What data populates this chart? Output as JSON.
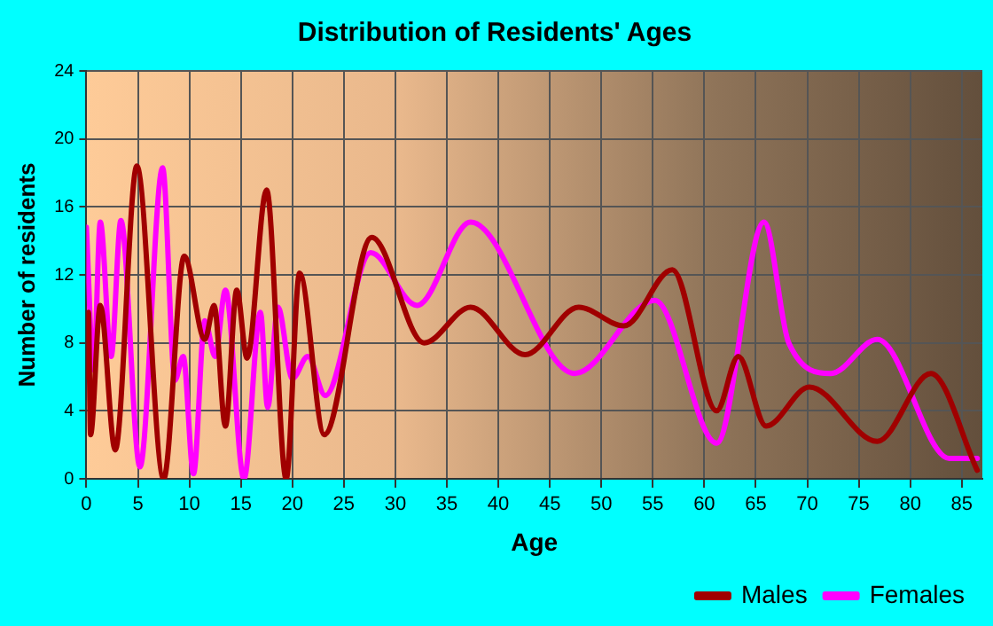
{
  "chart_data": {
    "type": "line",
    "title": "Distribution of Residents' Ages",
    "xlabel": "Age",
    "ylabel": "Number of residents",
    "xlim": [
      0,
      87
    ],
    "xticks": [
      0,
      5,
      10,
      15,
      20,
      25,
      30,
      35,
      40,
      45,
      50,
      55,
      60,
      65,
      70,
      75,
      80,
      85
    ],
    "ylim": [
      0,
      24
    ],
    "yticks": [
      0,
      4,
      8,
      12,
      16,
      20,
      24
    ],
    "grid": true,
    "legend": "bottom right",
    "marker": "none",
    "line_style": "solid",
    "series": [
      {
        "name": "Males",
        "color": "#a00000",
        "x": [
          0,
          0.2,
          0.4,
          1.35,
          2.8,
          4.9,
          7.5,
          9.5,
          11.5,
          12.4,
          13.5,
          14.6,
          15.6,
          17.5,
          19.4,
          20.7,
          23.1,
          27.7,
          32.8,
          37.3,
          42.6,
          47.8,
          52.2,
          56.9,
          61.2,
          63.3,
          66,
          70.2,
          76.8,
          82,
          86.5
        ],
        "values": [
          6,
          9.8,
          2.6,
          10.2,
          1.7,
          18.4,
          0,
          13.1,
          8.2,
          10.2,
          3.1,
          11.1,
          7.1,
          17,
          0,
          12.1,
          2.6,
          14.2,
          8,
          10.1,
          7.3,
          10.1,
          9,
          12.3,
          4,
          7.2,
          3.1,
          5.4,
          2.2,
          6.2,
          0.5
        ]
      },
      {
        "name": "Females",
        "color": "#ff00ff",
        "x": [
          0,
          0.7,
          1.35,
          2.4,
          3.35,
          5.2,
          7.4,
          8.6,
          9.4,
          10.4,
          11.5,
          12.5,
          13.5,
          15.3,
          16.9,
          17.6,
          18.6,
          20,
          21.5,
          23.2,
          27.6,
          32.1,
          37.3,
          47.4,
          55.2,
          61.2,
          65.8,
          68.2,
          72.3,
          76.8,
          83.8,
          86.5
        ],
        "values": [
          14.8,
          6.4,
          15.1,
          7.2,
          15.2,
          0.7,
          18.3,
          5.8,
          7.2,
          0.3,
          9.3,
          7.2,
          11.1,
          0,
          9.8,
          4.2,
          10.1,
          5.9,
          7.2,
          4.9,
          13.3,
          10.2,
          15.1,
          6.2,
          10.5,
          2.1,
          15.1,
          8,
          6.2,
          8.2,
          1.2,
          1.2
        ]
      }
    ]
  }
}
